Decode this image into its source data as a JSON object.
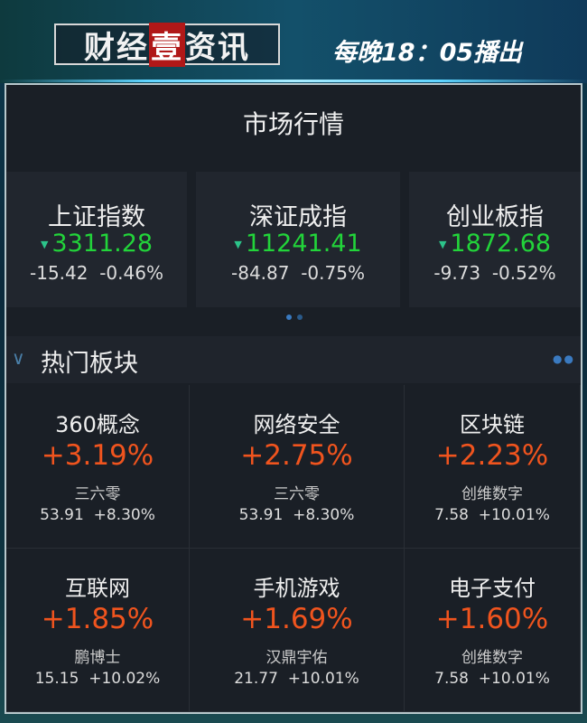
{
  "banner": {
    "logo_parts": [
      "财经",
      "壹",
      "资讯"
    ],
    "slogan": "每晚18：05播出"
  },
  "panel": {
    "title": "市场行情"
  },
  "indices": [
    {
      "name": "上证指数",
      "value": "3311.28",
      "change": "-15.42",
      "pct": "-0.46%",
      "direction": "down"
    },
    {
      "name": "深证成指",
      "value": "11241.41",
      "change": "-84.87",
      "pct": "-0.75%",
      "direction": "down"
    },
    {
      "name": "创业板指",
      "value": "1872.68",
      "change": "-9.73",
      "pct": "-0.52%",
      "direction": "down"
    }
  ],
  "hot": {
    "title": "热门板块",
    "sectors": [
      {
        "name": "360概念",
        "pct": "+3.19%",
        "leader": "三六零",
        "price": "53.91",
        "leader_pct": "+8.30%"
      },
      {
        "name": "网络安全",
        "pct": "+2.75%",
        "leader": "三六零",
        "price": "53.91",
        "leader_pct": "+8.30%"
      },
      {
        "name": "区块链",
        "pct": "+2.23%",
        "leader": "创维数字",
        "price": "7.58",
        "leader_pct": "+10.01%"
      },
      {
        "name": "互联网",
        "pct": "+1.85%",
        "leader": "鹏博士",
        "price": "15.15",
        "leader_pct": "+10.02%"
      },
      {
        "name": "手机游戏",
        "pct": "+1.69%",
        "leader": "汉鼎宇佑",
        "price": "21.77",
        "leader_pct": "+10.01%"
      },
      {
        "name": "电子支付",
        "pct": "+1.60%",
        "leader": "创维数字",
        "price": "7.58",
        "leader_pct": "+10.01%"
      }
    ]
  },
  "colors": {
    "down": "#22d43a",
    "up": "#f0541e"
  }
}
